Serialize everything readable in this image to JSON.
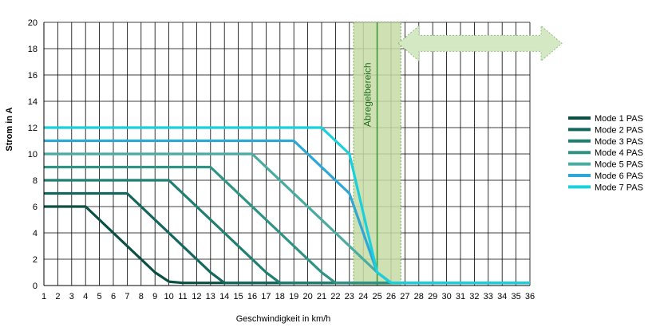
{
  "chart_data": {
    "type": "line",
    "title": "",
    "xlabel": "Geschwindigkeit in km/h",
    "ylabel": "Strom in A",
    "xlim": [
      1,
      36
    ],
    "ylim": [
      0,
      20
    ],
    "x_ticks": [
      1,
      2,
      3,
      4,
      5,
      6,
      7,
      8,
      9,
      10,
      11,
      12,
      13,
      14,
      15,
      16,
      17,
      18,
      19,
      20,
      21,
      22,
      23,
      24,
      25,
      26,
      27,
      28,
      29,
      30,
      31,
      32,
      33,
      34,
      35,
      36
    ],
    "y_ticks": [
      0,
      2,
      4,
      6,
      8,
      10,
      12,
      14,
      16,
      18,
      20
    ],
    "grid": true,
    "legend_position": "right",
    "series": [
      {
        "name": "Mode 1 PAS",
        "color": "#0b4f45",
        "points": [
          [
            1,
            6
          ],
          [
            4,
            6
          ],
          [
            9,
            1
          ],
          [
            10,
            0.3
          ],
          [
            11,
            0.2
          ],
          [
            36,
            0.2
          ]
        ]
      },
      {
        "name": "Mode 2 PAS",
        "color": "#14675c",
        "points": [
          [
            1,
            7
          ],
          [
            7,
            7
          ],
          [
            13,
            1
          ],
          [
            14,
            0.2
          ],
          [
            36,
            0.2
          ]
        ]
      },
      {
        "name": "Mode 3 PAS",
        "color": "#1f7f70",
        "points": [
          [
            1,
            8
          ],
          [
            10,
            8
          ],
          [
            17,
            1
          ],
          [
            18,
            0.2
          ],
          [
            36,
            0.2
          ]
        ]
      },
      {
        "name": "Mode 4 PAS",
        "color": "#2f9484",
        "points": [
          [
            1,
            9
          ],
          [
            13,
            9
          ],
          [
            21,
            1
          ],
          [
            22,
            0.2
          ],
          [
            36,
            0.2
          ]
        ]
      },
      {
        "name": "Mode 5 PAS",
        "color": "#4aaca0",
        "points": [
          [
            1,
            10
          ],
          [
            16,
            10
          ],
          [
            25,
            1
          ],
          [
            26,
            0.2
          ],
          [
            36,
            0.2
          ]
        ]
      },
      {
        "name": "Mode 6 PAS",
        "color": "#2fa7d6",
        "points": [
          [
            1,
            11
          ],
          [
            19,
            11
          ],
          [
            23,
            7
          ],
          [
            25,
            1
          ],
          [
            26,
            0.2
          ],
          [
            36,
            0.2
          ]
        ]
      },
      {
        "name": "Mode 7 PAS",
        "color": "#19d0dc",
        "points": [
          [
            1,
            12
          ],
          [
            21,
            12
          ],
          [
            23,
            10
          ],
          [
            25,
            1
          ],
          [
            26,
            0.2
          ],
          [
            36,
            0.2
          ]
        ]
      }
    ],
    "annotations": {
      "region_label": "Abregelbereich",
      "region_x": [
        23.3,
        26.7
      ],
      "region_center_x": 25,
      "region_color": "#c7dca4",
      "arrow_color": "#8ec07c"
    }
  }
}
